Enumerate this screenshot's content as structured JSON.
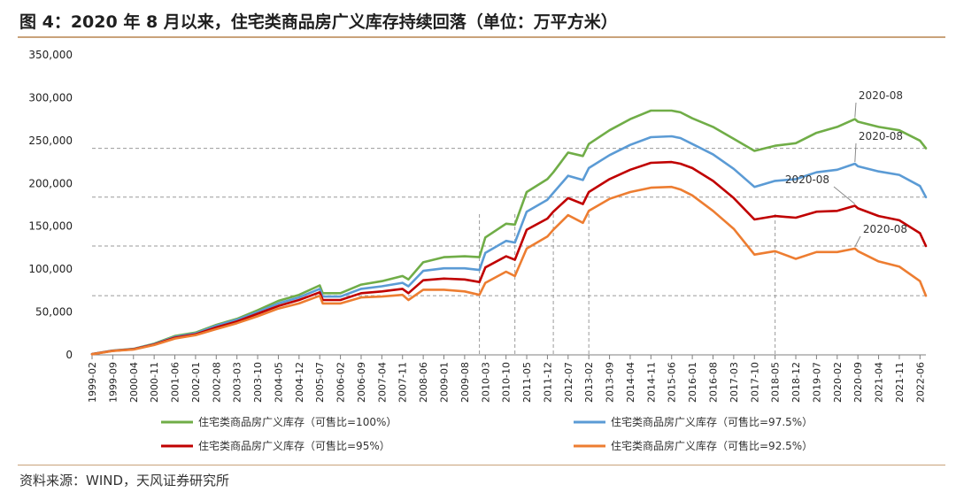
{
  "title": "图 4：2020 年 8 月以来，住宅类商品房广义库存持续回落（单位：万平方米）",
  "source": "资料来源：WIND，天风证券研究所",
  "colors": {
    "green": "#70ad47",
    "blue": "#5b9bd5",
    "red": "#c00000",
    "orange": "#ed7d31",
    "guide": "#9a9a9a",
    "axis": "#7f7f7f"
  },
  "chart_data": {
    "type": "line",
    "ylim": [
      0,
      350000
    ],
    "yticks": [
      "0",
      "50,000",
      "100,000",
      "150,000",
      "200,000",
      "250,000",
      "300,000",
      "350,000"
    ],
    "xticks": [
      "1999-02",
      "1999-09",
      "2000-04",
      "2000-11",
      "2001-06",
      "2002-01",
      "2002-08",
      "2003-03",
      "2003-10",
      "2004-05",
      "2004-12",
      "2005-07",
      "2006-02",
      "2006-09",
      "2007-04",
      "2007-11",
      "2008-06",
      "2009-01",
      "2009-08",
      "2010-03",
      "2010-10",
      "2011-05",
      "2011-12",
      "2012-07",
      "2013-02",
      "2013-09",
      "2014-04",
      "2014-11",
      "2015-06",
      "2016-01",
      "2016-08",
      "2017-03",
      "2017-10",
      "2018-05",
      "2018-12",
      "2019-07",
      "2020-02",
      "2020-09",
      "2021-04",
      "2021-11",
      "2022-06"
    ],
    "x": [
      "1999-02",
      "1999-09",
      "2000-04",
      "2000-11",
      "2001-06",
      "2002-01",
      "2002-08",
      "2003-03",
      "2003-10",
      "2004-05",
      "2004-12",
      "2005-07",
      "2005-08",
      "2006-02",
      "2006-09",
      "2007-04",
      "2007-11",
      "2008-01",
      "2008-06",
      "2009-01",
      "2009-08",
      "2010-01",
      "2010-03",
      "2010-10",
      "2011-01",
      "2011-05",
      "2011-12",
      "2012-02",
      "2012-07",
      "2012-12",
      "2013-02",
      "2013-09",
      "2014-04",
      "2014-11",
      "2015-06",
      "2015-09",
      "2016-01",
      "2016-08",
      "2017-03",
      "2017-10",
      "2018-05",
      "2018-12",
      "2019-07",
      "2020-02",
      "2020-08",
      "2020-09",
      "2021-04",
      "2021-11",
      "2022-06",
      "2022-08"
    ],
    "series": [
      {
        "name": "住宅类商品房广义库存（可售比=100%）",
        "color": "#70ad47",
        "values": [
          1000,
          5000,
          7000,
          13000,
          22000,
          26000,
          35000,
          42000,
          52000,
          63000,
          70000,
          81000,
          72000,
          72000,
          82000,
          86000,
          92000,
          88000,
          108000,
          114000,
          115000,
          114000,
          137000,
          153000,
          152000,
          190000,
          205000,
          213000,
          236000,
          232000,
          246000,
          262000,
          275000,
          285000,
          285000,
          283000,
          276000,
          266000,
          252000,
          238000,
          244000,
          247000,
          259000,
          266000,
          275000,
          272000,
          266000,
          262000,
          250000,
          241000
        ]
      },
      {
        "name": "住宅类商品房广义库存（可售比=97.5%）",
        "color": "#5b9bd5",
        "values": [
          900,
          4900,
          6800,
          12500,
          21000,
          25000,
          34000,
          41000,
          50000,
          60000,
          67000,
          77000,
          68000,
          68000,
          77000,
          80000,
          84000,
          80000,
          98000,
          101000,
          101000,
          99000,
          119000,
          133000,
          131000,
          167000,
          181000,
          189000,
          209000,
          204000,
          218000,
          233000,
          245000,
          254000,
          255000,
          253000,
          246000,
          234000,
          217000,
          196000,
          203000,
          205000,
          213000,
          216000,
          223000,
          220000,
          214000,
          210000,
          197000,
          184000
        ]
      },
      {
        "name": "住宅类商品房广义库存（可售比=95%）",
        "color": "#c00000",
        "values": [
          800,
          4700,
          6500,
          12000,
          20000,
          24000,
          32000,
          39000,
          48000,
          57000,
          64000,
          73000,
          64000,
          64000,
          72000,
          74000,
          77000,
          72000,
          87000,
          89000,
          88000,
          85000,
          102000,
          115000,
          111000,
          146000,
          159000,
          167000,
          183000,
          176000,
          190000,
          205000,
          216000,
          224000,
          225000,
          223000,
          218000,
          203000,
          183000,
          158000,
          162000,
          160000,
          167000,
          168000,
          174000,
          171000,
          162000,
          157000,
          142000,
          127000
        ]
      },
      {
        "name": "住宅类商品房广义库存（可售比=92.5%）",
        "color": "#ed7d31",
        "values": [
          700,
          4500,
          6200,
          11500,
          19000,
          23000,
          30000,
          37000,
          45000,
          54000,
          60000,
          69000,
          60000,
          60000,
          67000,
          68000,
          70000,
          64000,
          76000,
          76000,
          74000,
          70000,
          84000,
          97000,
          92000,
          124000,
          138000,
          146000,
          163000,
          154000,
          168000,
          182000,
          190000,
          195000,
          196000,
          193000,
          186000,
          168000,
          147000,
          117000,
          121000,
          112000,
          120000,
          120000,
          124000,
          121000,
          109000,
          103000,
          86000,
          69000
        ]
      }
    ],
    "annotations": [
      {
        "label": "2020-08",
        "series": 0,
        "x": "2020-08"
      },
      {
        "label": "2020-08",
        "series": 1,
        "x": "2020-08"
      },
      {
        "label": "2020-08",
        "series": 2,
        "x": "2020-08"
      },
      {
        "label": "2020-08",
        "series": 3,
        "x": "2020-08"
      }
    ],
    "vertical_guides": [
      "2010-01",
      "2011-01",
      "2012-02",
      "2013-02",
      "2018-05"
    ],
    "grid": false
  }
}
